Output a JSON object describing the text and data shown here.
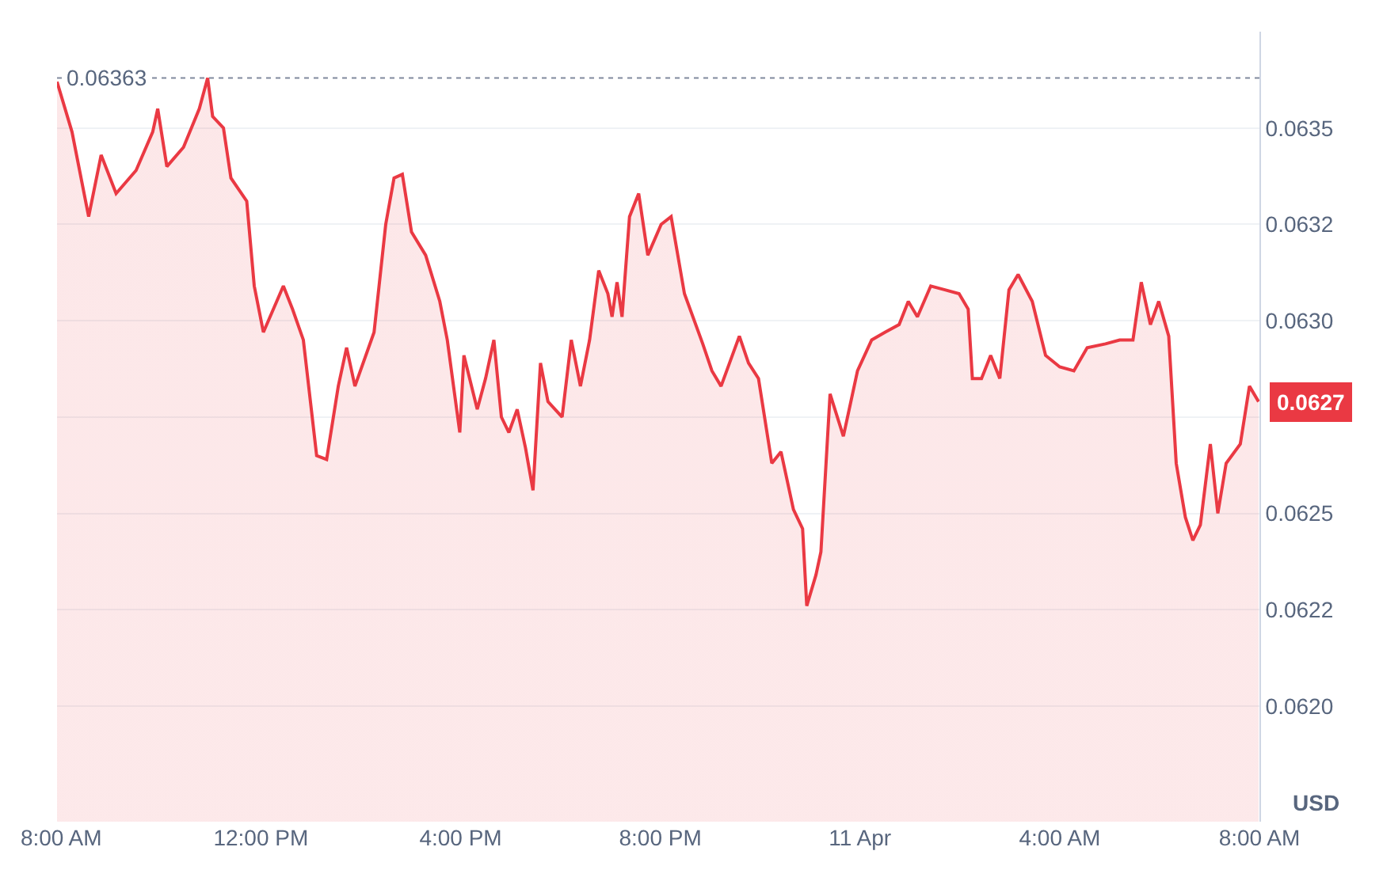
{
  "chart_data": {
    "type": "area",
    "ylabel": "USD",
    "x": [
      "--04-10T07:55",
      "--04-10T08:13",
      "--04-10T08:33",
      "--04-10T08:48",
      "--04-10T09:06",
      "--04-10T09:30",
      "--04-10T09:50",
      "--04-10T09:56",
      "--04-10T10:07",
      "--04-10T10:27",
      "--04-10T10:46",
      "--04-10T10:56",
      "--04-10T11:02",
      "--04-10T11:15",
      "--04-10T11:24",
      "--04-10T11:43",
      "--04-10T11:52",
      "--04-10T12:03",
      "--04-10T12:27",
      "--04-10T12:38",
      "--04-10T12:51",
      "--04-10T13:07",
      "--04-10T13:19",
      "--04-10T13:33",
      "--04-10T13:43",
      "--04-10T13:53",
      "--04-10T14:16",
      "--04-10T14:30",
      "--04-10T14:40",
      "--04-10T14:50",
      "--04-10T15:01",
      "--04-10T15:18",
      "--04-10T15:35",
      "--04-10T15:44",
      "--04-10T15:59",
      "--04-10T16:04",
      "--04-10T16:20",
      "--04-10T16:30",
      "--04-10T16:40",
      "--04-10T16:49",
      "--04-10T16:58",
      "--04-10T17:08",
      "--04-10T17:18",
      "--04-10T17:27",
      "--04-10T17:36",
      "--04-10T17:45",
      "--04-10T18:02",
      "--04-10T18:13",
      "--04-10T18:24",
      "--04-10T18:35",
      "--04-10T18:46",
      "--04-10T18:57",
      "--04-10T19:02",
      "--04-10T19:08",
      "--04-10T19:14",
      "--04-10T19:23",
      "--04-10T19:34",
      "--04-10T19:45",
      "--04-10T20:01",
      "--04-10T20:13",
      "--04-10T20:29",
      "--04-10T20:51",
      "--04-10T21:02",
      "--04-10T21:13",
      "--04-10T21:35",
      "--04-10T21:46",
      "--04-10T21:58",
      "--04-10T22:14",
      "--04-10T22:25",
      "--04-10T22:40",
      "--04-10T22:51",
      "--04-10T22:56",
      "--04-10T23:07",
      "--04-10T23:13",
      "--04-10T23:24",
      "--04-10T23:40",
      "--04-10T23:57",
      "--04-11T00:14",
      "--04-11T00:30",
      "--04-11T00:47",
      "--04-11T00:58",
      "--04-11T01:09",
      "--04-11T01:25",
      "--04-11T01:42",
      "--04-11T01:59",
      "--04-11T02:10",
      "--04-11T02:15",
      "--04-11T02:26",
      "--04-11T02:37",
      "--04-11T02:48",
      "--04-11T02:59",
      "--04-11T03:10",
      "--04-11T03:27",
      "--04-11T03:43",
      "--04-11T04:00",
      "--04-11T04:17",
      "--04-11T04:33",
      "--04-11T04:55",
      "--04-11T05:12",
      "--04-11T05:28",
      "--04-11T05:38",
      "--04-11T05:49",
      "--04-11T05:59",
      "--04-11T06:11",
      "--04-11T06:20",
      "--04-11T06:31",
      "--04-11T06:40",
      "--04-11T06:49",
      "--04-11T07:01",
      "--04-11T07:10",
      "--04-11T07:20",
      "--04-11T07:37",
      "--04-11T07:48",
      "--04-11T07:59"
    ],
    "series": [
      {
        "color": "#ea3943",
        "values": [
          0.06362,
          0.06349,
          0.06327,
          0.06343,
          0.06333,
          0.06339,
          0.06349,
          0.06355,
          0.0634,
          0.06345,
          0.06355,
          0.06363,
          0.06353,
          0.0635,
          0.06337,
          0.06331,
          0.06309,
          0.06297,
          0.06309,
          0.06303,
          0.06295,
          0.06265,
          0.06264,
          0.06283,
          0.06293,
          0.06283,
          0.06297,
          0.06325,
          0.06337,
          0.06338,
          0.06323,
          0.06317,
          0.06305,
          0.06295,
          0.06271,
          0.06291,
          0.06277,
          0.06285,
          0.06295,
          0.06275,
          0.06271,
          0.06277,
          0.06267,
          0.06256,
          0.06289,
          0.06279,
          0.06275,
          0.06295,
          0.06283,
          0.06295,
          0.06313,
          0.06307,
          0.06301,
          0.0631,
          0.06301,
          0.06327,
          0.06333,
          0.06317,
          0.06325,
          0.06327,
          0.06307,
          0.06294,
          0.06287,
          0.06283,
          0.06296,
          0.06289,
          0.06285,
          0.06263,
          0.06266,
          0.06251,
          0.06246,
          0.06226,
          0.06234,
          0.0624,
          0.06281,
          0.0627,
          0.06287,
          0.06295,
          0.06297,
          0.06299,
          0.06305,
          0.06301,
          0.06309,
          0.06308,
          0.06307,
          0.06303,
          0.06285,
          0.06285,
          0.06291,
          0.06285,
          0.06308,
          0.06312,
          0.06305,
          0.06291,
          0.06288,
          0.06287,
          0.06293,
          0.06294,
          0.06295,
          0.06295,
          0.0631,
          0.06299,
          0.06305,
          0.06296,
          0.06263,
          0.06249,
          0.06243,
          0.06247,
          0.06268,
          0.0625,
          0.06263,
          0.06268,
          0.06283,
          0.06279
        ]
      }
    ],
    "xlim": [
      "--04-10T07:55",
      "--04-11T08:00"
    ],
    "xticks": [
      {
        "value": "--04-10T08:00",
        "label": "8:00 AM"
      },
      {
        "value": "--04-10T12:00",
        "label": "12:00 PM"
      },
      {
        "value": "--04-10T16:00",
        "label": "4:00 PM"
      },
      {
        "value": "--04-10T20:00",
        "label": "8:00 PM"
      },
      {
        "value": "--04-11T00:00",
        "label": "11 Apr"
      },
      {
        "value": "--04-11T04:00",
        "label": "4:00 AM"
      },
      {
        "value": "--04-11T08:00",
        "label": "8:00 AM"
      }
    ],
    "ylim": [
      0.0617,
      0.06375
    ],
    "yticks": [
      {
        "value": 0.062,
        "label": "0.0620"
      },
      {
        "value": 0.06225,
        "label": "0.0622"
      },
      {
        "value": 0.0625,
        "label": "0.0625"
      },
      {
        "value": 0.06275,
        "label": null
      },
      {
        "value": 0.063,
        "label": "0.0630"
      },
      {
        "value": 0.06325,
        "label": "0.0632"
      },
      {
        "value": 0.0635,
        "label": "0.0635"
      }
    ],
    "ref_lines": [
      {
        "axis": "y",
        "value": 0.06363,
        "label": "0.06363",
        "color": "#808a9d",
        "line_style": "dotted"
      }
    ],
    "annotations": [
      "0.0627"
    ],
    "grid": "y",
    "line_style": "solid",
    "marker": "none"
  }
}
